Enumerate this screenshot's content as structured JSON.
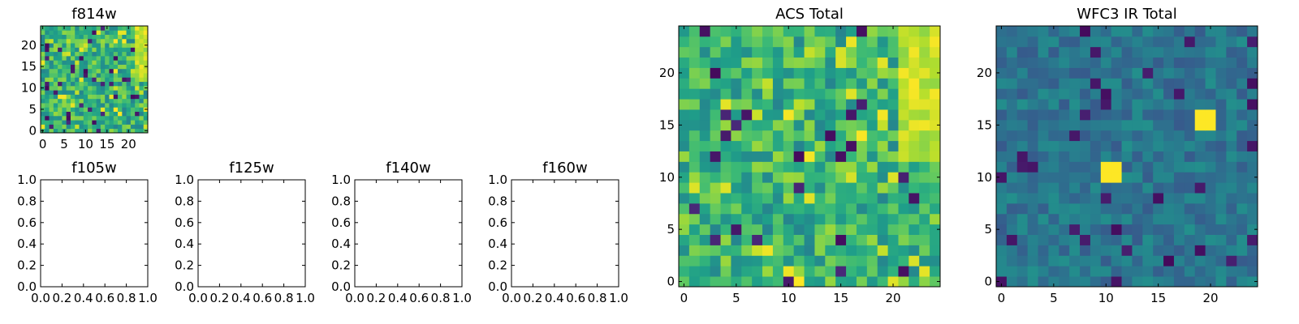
{
  "figure": {
    "colormap": "viridis",
    "colors": {
      "background": "#ffffff",
      "axis": "#000000"
    }
  },
  "chart_data": [
    {
      "id": "f814w",
      "type": "heatmap",
      "title": "f814w",
      "xticks": [
        "0",
        "5",
        "10",
        "15",
        "20"
      ],
      "yticks": [
        "0",
        "5",
        "10",
        "15",
        "20"
      ],
      "xlim": [
        -0.5,
        24.5
      ],
      "ylim": [
        -0.5,
        24.5
      ],
      "grid": false,
      "size": 25,
      "seed": 814,
      "hot_column": 23
    },
    {
      "id": "f105w",
      "type": "empty",
      "title": "f105w",
      "xticks": [
        "0.0",
        "0.2",
        "0.4",
        "0.6",
        "0.8",
        "1.0"
      ],
      "yticks": [
        "0.0",
        "0.2",
        "0.4",
        "0.6",
        "0.8",
        "1.0"
      ],
      "xlim": [
        0,
        1
      ],
      "ylim": [
        0,
        1
      ]
    },
    {
      "id": "f125w",
      "type": "empty",
      "title": "f125w",
      "xticks": [
        "0.0",
        "0.2",
        "0.4",
        "0.6",
        "0.8",
        "1.0"
      ],
      "yticks": [
        "0.0",
        "0.2",
        "0.4",
        "0.6",
        "0.8",
        "1.0"
      ],
      "xlim": [
        0,
        1
      ],
      "ylim": [
        0,
        1
      ]
    },
    {
      "id": "f140w",
      "type": "empty",
      "title": "f140w",
      "xticks": [
        "0.0",
        "0.2",
        "0.4",
        "0.6",
        "0.8",
        "1.0"
      ],
      "yticks": [
        "0.0",
        "0.2",
        "0.4",
        "0.6",
        "0.8",
        "1.0"
      ],
      "xlim": [
        0,
        1
      ],
      "ylim": [
        0,
        1
      ]
    },
    {
      "id": "f160w",
      "type": "empty",
      "title": "f160w",
      "xticks": [
        "0.0",
        "0.2",
        "0.4",
        "0.6",
        "0.8",
        "1.0"
      ],
      "yticks": [
        "0.0",
        "0.2",
        "0.4",
        "0.6",
        "0.8",
        "1.0"
      ],
      "xlim": [
        0,
        1
      ],
      "ylim": [
        0,
        1
      ]
    },
    {
      "id": "acs_total",
      "type": "heatmap",
      "title": "ACS Total",
      "xticks": [
        "0",
        "5",
        "10",
        "15",
        "20"
      ],
      "yticks": [
        "0",
        "5",
        "10",
        "15",
        "20"
      ],
      "xlim": [
        -0.5,
        24.5
      ],
      "ylim": [
        -0.5,
        24.5
      ],
      "grid": false,
      "size": 25,
      "seed": 1337,
      "hot_column": 22
    },
    {
      "id": "wfc3_ir_total",
      "type": "heatmap",
      "title": "WFC3 IR Total",
      "xticks": [
        "0",
        "5",
        "10",
        "15",
        "20"
      ],
      "yticks": [
        "0",
        "5",
        "10",
        "15",
        "20"
      ],
      "xlim": [
        -0.5,
        24.5
      ],
      "ylim": [
        -0.5,
        24.5
      ],
      "grid": false,
      "size": 25,
      "seed": 4242,
      "hot_spots": [
        {
          "x": 20.5,
          "y": 16.5,
          "value": 1.0
        },
        {
          "x": 11.5,
          "y": 11.5,
          "value": 1.0
        }
      ]
    }
  ]
}
